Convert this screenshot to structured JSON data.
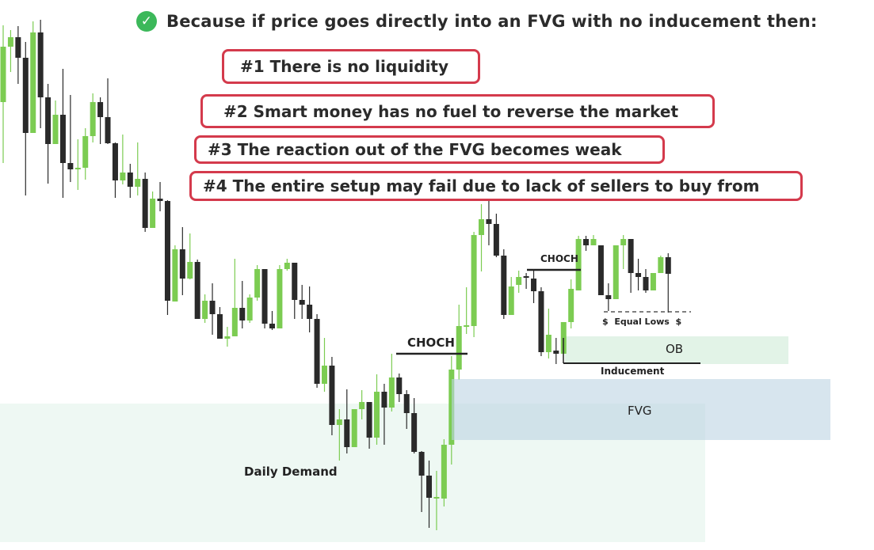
{
  "headline": {
    "icon": "check-circle-icon",
    "text": "Because if price goes directly into an FVG with no inducement then:"
  },
  "reasons": [
    "#1 There is no liquidity",
    "#2 Smart money has no fuel to reverse the market",
    "#3 The reaction out of the FVG becomes weak",
    "#4 The entire setup may fail due to lack of sellers to buy from"
  ],
  "labels": {
    "choch_1": "CHOCH",
    "choch_2": "CHOCH",
    "daily_demand": "Daily Demand",
    "fvg": "FVG",
    "ob": "OB",
    "inducement": "Inducement",
    "equal_lows": "$  Equal Lows  $"
  },
  "colors": {
    "bull": "#7ccc52",
    "bear": "#2a2a2a",
    "box_border": "#d43a4c",
    "demand": "#eef8f3",
    "fvg": "#bcd3e3",
    "ob": "#e2f3e7",
    "check": "#3cb85a"
  },
  "chart_data": {
    "type": "candlestick",
    "title": "",
    "xlabel": "",
    "ylabel": "",
    "axes_shown": false,
    "candles_ohlc": [
      [
        571,
        668,
        494,
        641
      ],
      [
        641,
        662,
        609,
        653
      ],
      [
        653,
        667,
        594,
        627
      ],
      [
        627,
        647,
        453,
        532
      ],
      [
        532,
        673,
        532,
        659
      ],
      [
        659,
        675,
        538,
        577
      ],
      [
        577,
        594,
        468,
        518
      ],
      [
        518,
        573,
        518,
        555
      ],
      [
        555,
        613,
        450,
        494
      ],
      [
        494,
        580,
        470,
        486
      ],
      [
        486,
        524,
        460,
        488
      ],
      [
        488,
        538,
        473,
        528
      ],
      [
        528,
        582,
        520,
        571
      ],
      [
        571,
        577,
        518,
        552
      ],
      [
        552,
        601,
        518,
        519
      ],
      [
        519,
        520,
        450,
        472
      ],
      [
        472,
        530,
        467,
        482
      ],
      [
        482,
        493,
        450,
        464
      ],
      [
        464,
        520,
        453,
        474
      ],
      [
        474,
        482,
        407,
        412
      ],
      [
        412,
        458,
        412,
        449
      ],
      [
        449,
        470,
        433,
        446
      ],
      [
        446,
        447,
        302,
        320
      ],
      [
        319,
        390,
        319,
        385
      ],
      [
        385,
        413,
        327,
        348
      ],
      [
        348,
        405,
        347,
        369
      ],
      [
        369,
        372,
        297,
        297
      ],
      [
        297,
        328,
        292,
        320
      ],
      [
        320,
        342,
        277,
        303
      ],
      [
        303,
        312,
        272,
        272
      ],
      [
        272,
        287,
        262,
        275
      ],
      [
        275,
        373,
        275,
        311
      ],
      [
        311,
        345,
        285,
        295
      ],
      [
        295,
        328,
        292,
        324
      ],
      [
        324,
        365,
        320,
        360
      ],
      [
        360,
        360,
        285,
        291
      ],
      [
        291,
        307,
        283,
        285
      ],
      [
        285,
        365,
        285,
        360
      ],
      [
        360,
        373,
        358,
        368
      ],
      [
        368,
        368,
        297,
        321
      ],
      [
        321,
        340,
        297,
        315
      ],
      [
        315,
        338,
        280,
        297
      ],
      [
        297,
        303,
        210,
        215
      ],
      [
        215,
        273,
        205,
        238
      ],
      [
        238,
        249,
        150,
        163
      ],
      [
        163,
        183,
        118,
        170
      ],
      [
        170,
        208,
        127,
        135
      ],
      [
        135,
        183,
        135,
        183
      ],
      [
        183,
        207,
        170,
        192
      ],
      [
        192,
        192,
        133,
        147
      ],
      [
        147,
        227,
        138,
        205
      ],
      [
        205,
        215,
        138,
        185
      ],
      [
        185,
        253,
        180,
        223
      ],
      [
        223,
        228,
        192,
        202
      ],
      [
        202,
        207,
        158,
        178
      ],
      [
        178,
        197,
        127,
        129
      ],
      [
        129,
        130,
        53,
        99
      ],
      [
        99,
        118,
        33,
        71
      ],
      [
        70,
        105,
        30,
        72
      ],
      [
        70,
        145,
        60,
        138
      ],
      [
        138,
        250,
        113,
        233
      ],
      [
        233,
        315,
        220,
        288
      ],
      [
        288,
        337,
        278,
        289
      ],
      [
        288,
        407,
        274,
        403
      ],
      [
        403,
        442,
        357,
        423
      ],
      [
        423,
        452,
        390,
        417
      ],
      [
        417,
        430,
        375,
        377
      ],
      [
        377,
        385,
        297,
        302
      ],
      [
        302,
        350,
        302,
        338
      ],
      [
        340,
        358,
        330,
        350
      ],
      [
        351,
        355,
        335,
        350
      ],
      [
        348,
        358,
        317,
        332
      ],
      [
        332,
        337,
        250,
        255
      ],
      [
        255,
        310,
        247,
        277
      ],
      [
        257,
        273,
        240,
        253
      ],
      [
        253,
        293,
        253,
        293
      ],
      [
        293,
        347,
        285,
        335
      ],
      [
        333,
        402,
        333,
        398
      ],
      [
        398,
        402,
        383,
        390
      ],
      [
        390,
        403,
        390,
        398
      ],
      [
        390,
        390,
        327,
        327
      ],
      [
        327,
        342,
        307,
        322
      ],
      [
        322,
        390,
        322,
        390
      ],
      [
        390,
        403,
        360,
        398
      ],
      [
        398,
        398,
        330,
        355
      ],
      [
        355,
        373,
        333,
        350
      ],
      [
        350,
        360,
        330,
        333
      ],
      [
        333,
        355,
        333,
        355
      ],
      [
        355,
        377,
        355,
        375
      ],
      [
        375,
        380,
        305,
        354
      ]
    ],
    "zones": [
      {
        "name": "Daily Demand",
        "high": 190,
        "low": 15
      },
      {
        "name": "FVG",
        "high": 221,
        "low": 144
      },
      {
        "name": "OB",
        "high": 275,
        "low": 240
      }
    ],
    "levels": [
      {
        "name": "CHOCH",
        "price": 254
      },
      {
        "name": "CHOCH",
        "price": 359
      },
      {
        "name": "Inducement",
        "price": 241
      },
      {
        "name": "Equal Lows",
        "price": 306
      }
    ]
  }
}
